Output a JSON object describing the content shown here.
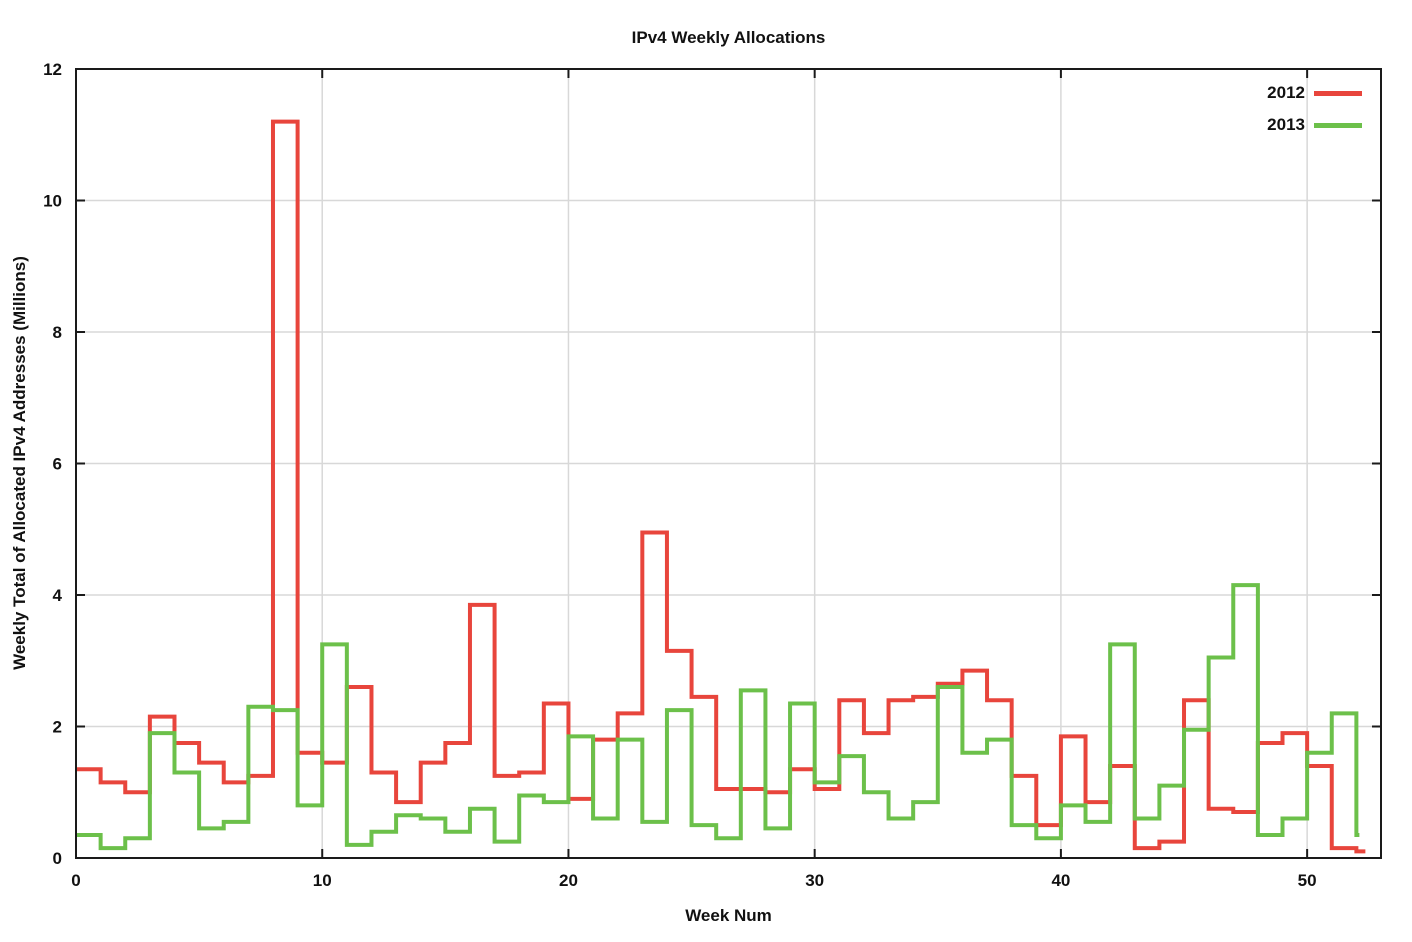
{
  "chart_data": {
    "type": "line",
    "line_style": "steps",
    "title": "IPv4 Weekly Allocations",
    "xlabel": "Week Num",
    "ylabel": "Weekly Total of Allocated IPv4 Addresses (Millions)",
    "xlim": [
      0,
      53
    ],
    "ylim": [
      0,
      12
    ],
    "x_ticks": [
      0,
      10,
      20,
      30,
      40,
      50
    ],
    "y_ticks": [
      0,
      2,
      4,
      6,
      8,
      10,
      12
    ],
    "grid": true,
    "legend_position": "top-right-inside",
    "x": [
      0,
      1,
      2,
      3,
      4,
      5,
      6,
      7,
      8,
      9,
      10,
      11,
      12,
      13,
      14,
      15,
      16,
      17,
      18,
      19,
      20,
      21,
      22,
      23,
      24,
      25,
      26,
      27,
      28,
      29,
      30,
      31,
      32,
      33,
      34,
      35,
      36,
      37,
      38,
      39,
      40,
      41,
      42,
      43,
      44,
      45,
      46,
      47,
      48,
      49,
      50,
      51,
      52
    ],
    "series": [
      {
        "name": "2012",
        "color": "#e8453c",
        "values": [
          1.35,
          1.15,
          1.0,
          2.15,
          1.75,
          1.45,
          1.15,
          1.25,
          11.2,
          1.6,
          1.45,
          2.6,
          1.3,
          0.85,
          1.45,
          1.75,
          3.85,
          1.25,
          1.3,
          2.35,
          0.9,
          1.8,
          2.2,
          4.95,
          3.15,
          2.45,
          1.05,
          1.05,
          1.0,
          1.35,
          1.05,
          2.4,
          1.9,
          2.4,
          2.45,
          2.65,
          2.85,
          2.4,
          1.25,
          0.5,
          1.85,
          0.85,
          1.4,
          0.15,
          0.25,
          2.4,
          0.75,
          0.7,
          1.75,
          1.9,
          1.4,
          0.15,
          0.1
        ]
      },
      {
        "name": "2013",
        "color": "#6cc04a",
        "values": [
          0.35,
          0.15,
          0.3,
          1.9,
          1.3,
          0.45,
          0.55,
          2.3,
          2.25,
          0.8,
          3.25,
          0.2,
          0.4,
          0.65,
          0.6,
          0.4,
          0.75,
          0.25,
          0.95,
          0.85,
          1.85,
          0.6,
          1.8,
          0.55,
          2.25,
          0.5,
          0.3,
          2.55,
          0.45,
          2.35,
          1.15,
          1.55,
          1.0,
          0.6,
          0.85,
          2.6,
          1.6,
          1.8,
          0.5,
          0.3,
          0.8,
          0.55,
          3.25,
          0.6,
          1.1,
          1.95,
          3.05,
          4.15,
          0.35,
          0.6,
          1.6,
          2.2,
          0.35
        ]
      }
    ],
    "colors": {
      "grid": "#d8d8d8",
      "axis": "#1a1a1a",
      "text": "#111111",
      "background": "#ffffff"
    }
  }
}
